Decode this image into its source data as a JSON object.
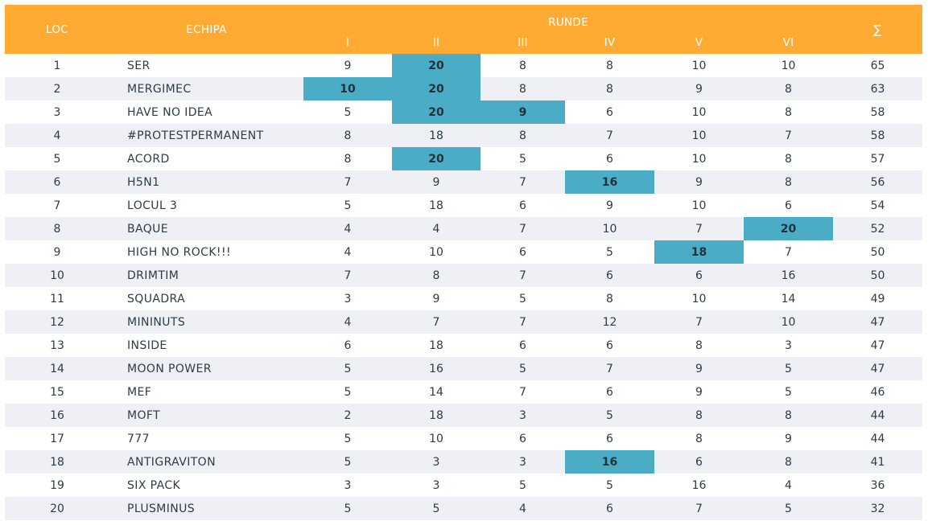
{
  "header": {
    "loc": "LOC",
    "team": "ECHIPA",
    "rounds_title": "RUNDE",
    "rounds": [
      "I",
      "II",
      "III",
      "IV",
      "V",
      "VI"
    ],
    "sum": "∑"
  },
  "colors": {
    "header_bg": "#ffab33",
    "highlight": "#4bacc6",
    "row_alt": "#eef0f5"
  },
  "rows": [
    {
      "loc": "1",
      "team": "SER",
      "scores": [
        "9",
        "20",
        "8",
        "8",
        "10",
        "10"
      ],
      "total": "65",
      "highlight": [
        1
      ]
    },
    {
      "loc": "2",
      "team": "MERGIMEC",
      "scores": [
        "10",
        "20",
        "8",
        "8",
        "9",
        "8"
      ],
      "total": "63",
      "highlight": [
        0,
        1
      ]
    },
    {
      "loc": "3",
      "team": "HAVE NO IDEA",
      "scores": [
        "5",
        "20",
        "9",
        "6",
        "10",
        "8"
      ],
      "total": "58",
      "highlight": [
        1,
        2
      ]
    },
    {
      "loc": "4",
      "team": "#PROTESTPERMANENT",
      "scores": [
        "8",
        "18",
        "8",
        "7",
        "10",
        "7"
      ],
      "total": "58",
      "highlight": []
    },
    {
      "loc": "5",
      "team": "ACORD",
      "scores": [
        "8",
        "20",
        "5",
        "6",
        "10",
        "8"
      ],
      "total": "57",
      "highlight": [
        1
      ]
    },
    {
      "loc": "6",
      "team": "H5N1",
      "scores": [
        "7",
        "9",
        "7",
        "16",
        "9",
        "8"
      ],
      "total": "56",
      "highlight": [
        3
      ]
    },
    {
      "loc": "7",
      "team": "LOCUL 3",
      "scores": [
        "5",
        "18",
        "6",
        "9",
        "10",
        "6"
      ],
      "total": "54",
      "highlight": []
    },
    {
      "loc": "8",
      "team": "BAQUE",
      "scores": [
        "4",
        "4",
        "7",
        "10",
        "7",
        "20"
      ],
      "total": "52",
      "highlight": [
        5
      ]
    },
    {
      "loc": "9",
      "team": "HIGH NO ROCK!!!",
      "scores": [
        "4",
        "10",
        "6",
        "5",
        "18",
        "7"
      ],
      "total": "50",
      "highlight": [
        4
      ]
    },
    {
      "loc": "10",
      "team": "DRIMTIM",
      "scores": [
        "7",
        "8",
        "7",
        "6",
        "6",
        "16"
      ],
      "total": "50",
      "highlight": []
    },
    {
      "loc": "11",
      "team": "SQUADRA",
      "scores": [
        "3",
        "9",
        "5",
        "8",
        "10",
        "14"
      ],
      "total": "49",
      "highlight": []
    },
    {
      "loc": "12",
      "team": "MININUTS",
      "scores": [
        "4",
        "7",
        "7",
        "12",
        "7",
        "10"
      ],
      "total": "47",
      "highlight": []
    },
    {
      "loc": "13",
      "team": "INSIDE",
      "scores": [
        "6",
        "18",
        "6",
        "6",
        "8",
        "3"
      ],
      "total": "47",
      "highlight": []
    },
    {
      "loc": "14",
      "team": "MOON POWER",
      "scores": [
        "5",
        "16",
        "5",
        "7",
        "9",
        "5"
      ],
      "total": "47",
      "highlight": []
    },
    {
      "loc": "15",
      "team": "MEF",
      "scores": [
        "5",
        "14",
        "7",
        "6",
        "9",
        "5"
      ],
      "total": "46",
      "highlight": []
    },
    {
      "loc": "16",
      "team": "MOFT",
      "scores": [
        "2",
        "18",
        "3",
        "5",
        "8",
        "8"
      ],
      "total": "44",
      "highlight": []
    },
    {
      "loc": "17",
      "team": "777",
      "scores": [
        "5",
        "10",
        "6",
        "6",
        "8",
        "9"
      ],
      "total": "44",
      "highlight": []
    },
    {
      "loc": "18",
      "team": "ANTIGRAVITON",
      "scores": [
        "5",
        "3",
        "3",
        "16",
        "6",
        "8"
      ],
      "total": "41",
      "highlight": [
        3
      ]
    },
    {
      "loc": "19",
      "team": "SIX PACK",
      "scores": [
        "3",
        "3",
        "5",
        "5",
        "16",
        "4"
      ],
      "total": "36",
      "highlight": []
    },
    {
      "loc": "20",
      "team": "PLUSMINUS",
      "scores": [
        "5",
        "5",
        "4",
        "6",
        "7",
        "5"
      ],
      "total": "32",
      "highlight": []
    }
  ]
}
